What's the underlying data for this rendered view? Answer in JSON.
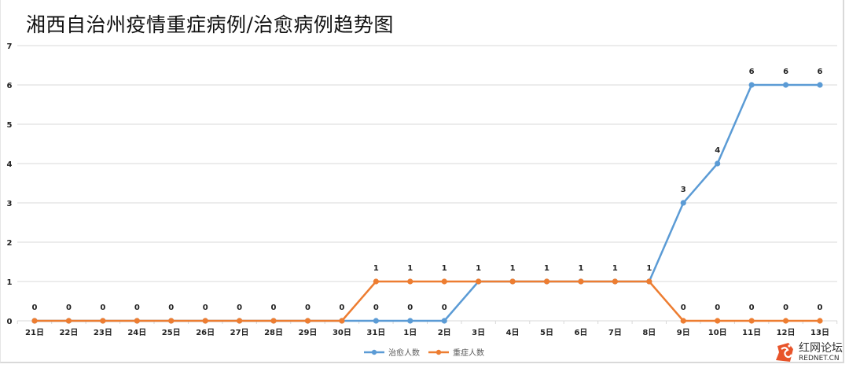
{
  "title": "湘西自治州疫情重症病例/治愈病例趋势图",
  "watermark": {
    "cn": "红网论坛",
    "en": "REDNET.CN"
  },
  "colors": {
    "cured": "#5b9bd5",
    "severe": "#ed7d31",
    "grid": "#d9d9d9",
    "axis_text": "#222222",
    "legend_text": "#595959"
  },
  "chart_data": {
    "type": "line",
    "title": "湘西自治州疫情重症病例/治愈病例趋势图",
    "xlabel": "",
    "ylabel": "",
    "ylim": [
      0,
      7
    ],
    "yticks": [
      0,
      1,
      2,
      3,
      4,
      5,
      6,
      7
    ],
    "grid": true,
    "legend_position": "bottom",
    "categories": [
      "21日",
      "22日",
      "23日",
      "24日",
      "25日",
      "26日",
      "27日",
      "28日",
      "29日",
      "30日",
      "31日",
      "1日",
      "2日",
      "3日",
      "4日",
      "5日",
      "6日",
      "7日",
      "8日",
      "9日",
      "10日",
      "11日",
      "12日",
      "13日"
    ],
    "series": [
      {
        "name": "治愈人数",
        "color": "#5b9bd5",
        "values": [
          0,
          0,
          0,
          0,
          0,
          0,
          0,
          0,
          0,
          0,
          0,
          0,
          0,
          1,
          1,
          1,
          1,
          1,
          1,
          3,
          4,
          6,
          6,
          6
        ]
      },
      {
        "name": "重症人数",
        "color": "#ed7d31",
        "values": [
          0,
          0,
          0,
          0,
          0,
          0,
          0,
          0,
          0,
          0,
          1,
          1,
          1,
          1,
          1,
          1,
          1,
          1,
          1,
          0,
          0,
          0,
          0,
          0
        ]
      }
    ]
  }
}
